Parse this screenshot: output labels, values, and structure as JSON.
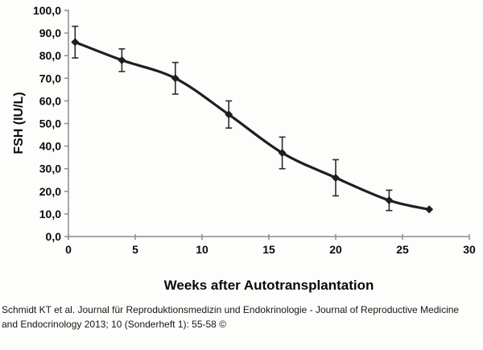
{
  "chart_data": {
    "type": "line",
    "title": "",
    "xlabel": "Weeks after Autotransplantation",
    "ylabel": "FSH (IU/L)",
    "x": [
      0.5,
      4,
      8,
      12,
      16,
      20,
      24,
      27
    ],
    "series": [
      {
        "values": [
          86,
          78,
          70,
          54,
          37,
          26,
          16,
          12
        ],
        "errors": [
          7,
          5,
          7,
          6,
          7,
          8,
          4.5,
          0
        ]
      }
    ],
    "xlim": [
      0,
      30
    ],
    "ylim": [
      0,
      100
    ],
    "x_tick_values": [
      0,
      5,
      10,
      15,
      20,
      25,
      30
    ],
    "x_tick_labels": [
      "0",
      "5",
      "10",
      "15",
      "20",
      "25",
      "30"
    ],
    "y_tick_values": [
      0,
      10,
      20,
      30,
      40,
      50,
      60,
      70,
      80,
      90,
      100
    ],
    "y_tick_labels": [
      "0,0",
      "10,0",
      "20,0",
      "30,0",
      "40,0",
      "50,0",
      "60,0",
      "70,0",
      "80,0",
      "90,0",
      "100,0"
    ],
    "grid": false,
    "legend": "none",
    "marker": "diamond",
    "line_color": "#1f1f1f",
    "axis_color": "#8c8c8c",
    "error_bar_color": "#2b2b2b",
    "tick_label_color": "#0a0a0a",
    "line_smooth": true
  },
  "caption": {
    "line1": "Schmidt KT et al. Journal für Reproduktionsmedizin und Endokrinologie - Journal of Reproductive Medicine",
    "line2": "and Endocrinology 2013; 10 (Sonderheft 1): 55-58 ©"
  }
}
